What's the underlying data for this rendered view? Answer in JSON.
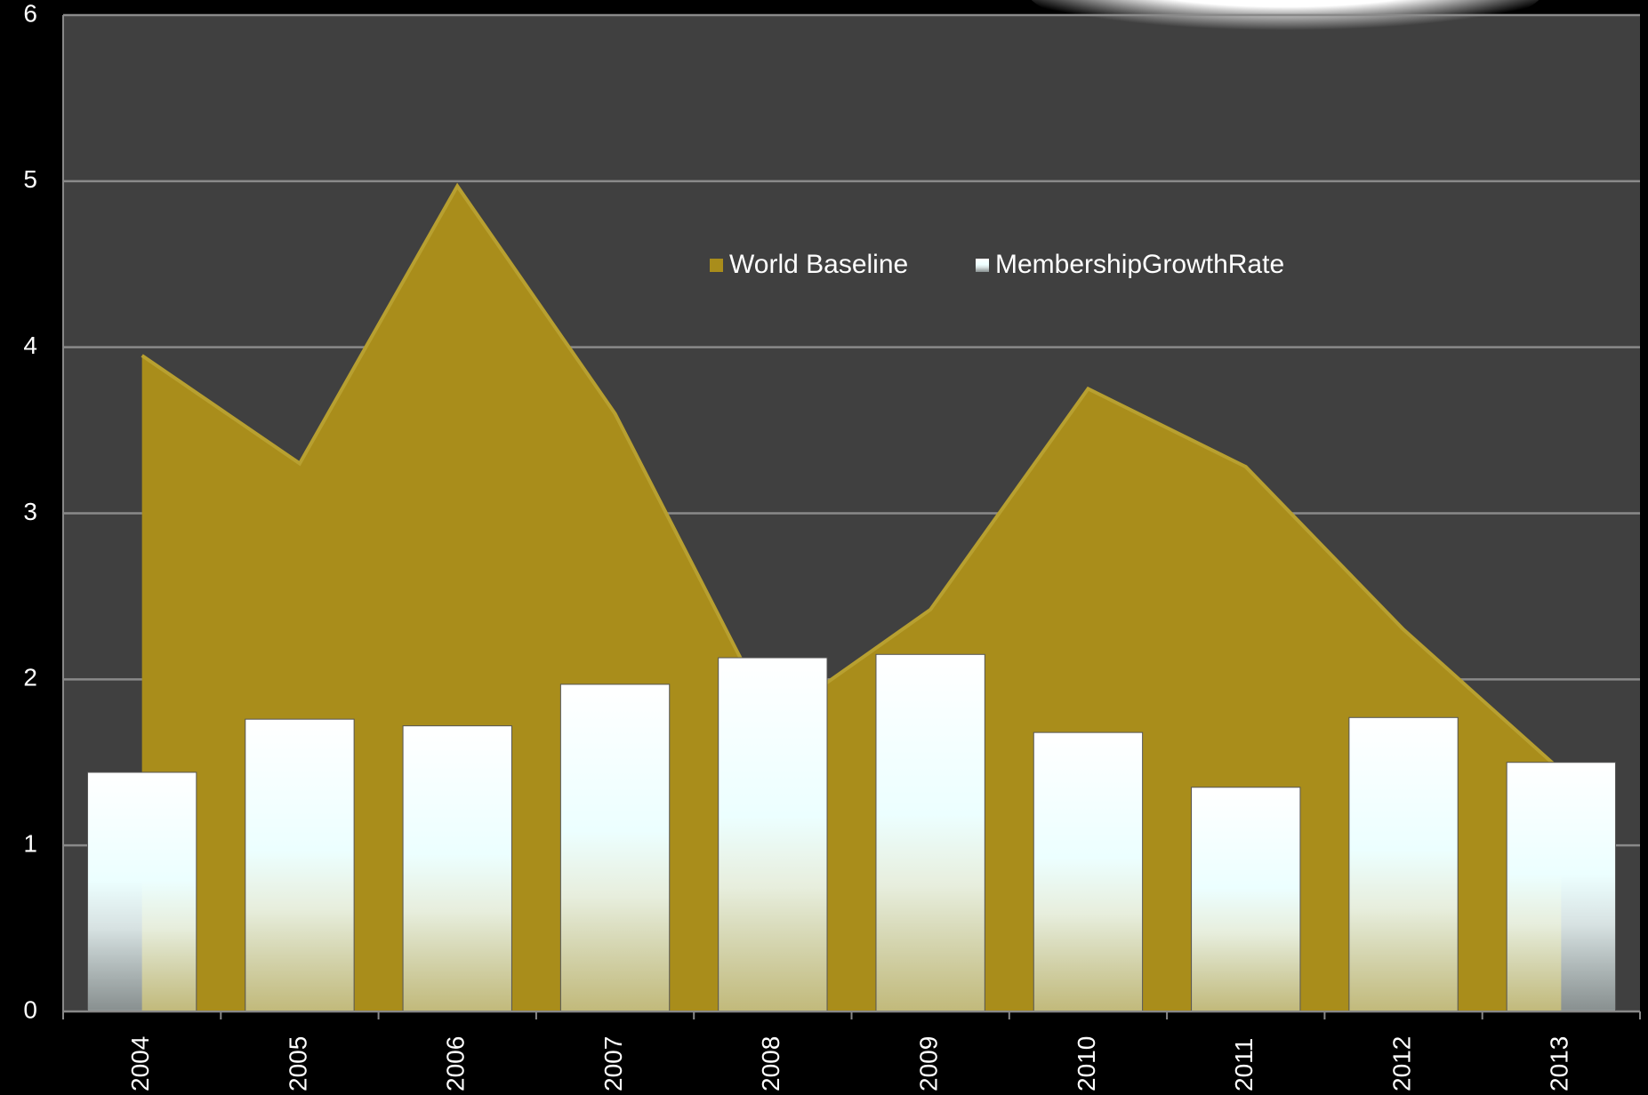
{
  "chart_data": {
    "type": "combo",
    "categories": [
      "2004",
      "2005",
      "2006",
      "2007",
      "2008",
      "2009",
      "2010",
      "2011",
      "2012",
      "2013"
    ],
    "series": [
      {
        "name": "World Baseline",
        "type": "area",
        "color": "#a98d1b",
        "values": [
          3.95,
          3.3,
          4.97,
          3.6,
          1.75,
          2.42,
          3.75,
          3.28,
          2.3,
          1.45
        ]
      },
      {
        "name": "MembershipGrowthRate",
        "type": "bar",
        "color": "#ffffff",
        "values": [
          1.44,
          1.76,
          1.72,
          1.97,
          2.13,
          2.15,
          1.68,
          1.35,
          1.77,
          1.5
        ]
      }
    ],
    "ylim": [
      0,
      6
    ],
    "yticks": [
      0,
      1,
      2,
      3,
      4,
      5,
      6
    ],
    "grid": true,
    "legend": "top"
  }
}
